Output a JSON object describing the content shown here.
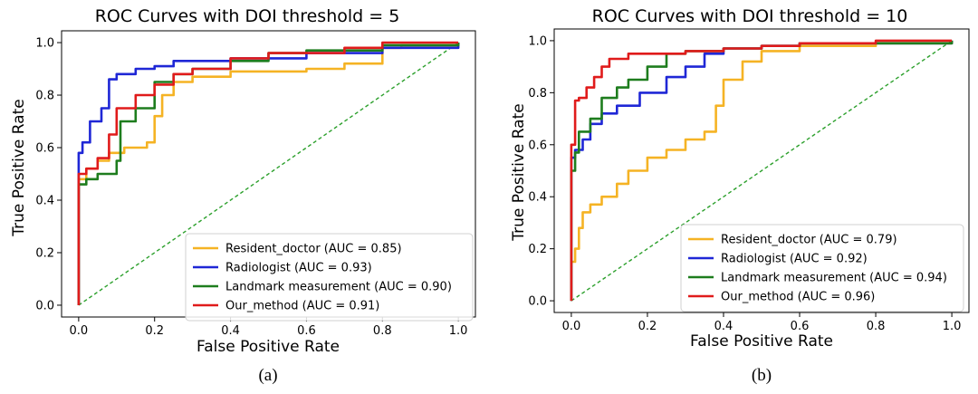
{
  "chart_data": [
    {
      "type": "line",
      "title": "ROC Curves with DOI threshold = 5",
      "xlabel": "False Positive Rate",
      "ylabel": "True Positive Rate",
      "xlim": [
        0,
        1
      ],
      "ylim": [
        0,
        1
      ],
      "xticks": [
        "0.0",
        "0.2",
        "0.4",
        "0.6",
        "0.8",
        "1.0"
      ],
      "yticks": [
        "0.0",
        "0.2",
        "0.4",
        "0.6",
        "0.8",
        "1.0"
      ],
      "legend_position": "lower-right",
      "caption": "(a)",
      "diagonal": {
        "x": [
          0,
          1
        ],
        "y": [
          0,
          1
        ],
        "color": "#2ca02c",
        "style": "dashed"
      },
      "series": [
        {
          "name": "Resident_doctor (AUC = 0.85)",
          "color": "#f5b324",
          "x": [
            0,
            0,
            0.02,
            0.05,
            0.08,
            0.12,
            0.18,
            0.2,
            0.22,
            0.25,
            0.3,
            0.4,
            0.5,
            0.6,
            0.7,
            0.8,
            0.8,
            0.85,
            1.0
          ],
          "y": [
            0,
            0.48,
            0.52,
            0.55,
            0.58,
            0.6,
            0.62,
            0.72,
            0.8,
            0.85,
            0.87,
            0.89,
            0.89,
            0.9,
            0.92,
            0.93,
            0.98,
            0.99,
            1.0
          ]
        },
        {
          "name": "Radiologist (AUC = 0.93)",
          "color": "#1f27d6",
          "x": [
            0,
            0,
            0.01,
            0.03,
            0.06,
            0.08,
            0.1,
            0.15,
            0.2,
            0.25,
            0.3,
            0.4,
            0.6,
            0.8,
            1.0
          ],
          "y": [
            0,
            0.58,
            0.62,
            0.7,
            0.75,
            0.86,
            0.88,
            0.9,
            0.91,
            0.93,
            0.93,
            0.94,
            0.96,
            0.98,
            1.0
          ]
        },
        {
          "name": "Landmark measurement (AUC = 0.90)",
          "color": "#1e7d1e",
          "x": [
            0,
            0,
            0.02,
            0.05,
            0.1,
            0.11,
            0.15,
            0.2,
            0.25,
            0.3,
            0.4,
            0.5,
            0.6,
            0.8,
            1.0
          ],
          "y": [
            0,
            0.46,
            0.48,
            0.5,
            0.55,
            0.7,
            0.75,
            0.85,
            0.88,
            0.9,
            0.93,
            0.96,
            0.97,
            0.99,
            1.0
          ]
        },
        {
          "name": "Our_method (AUC = 0.91)",
          "color": "#e01b1b",
          "x": [
            0,
            0,
            0.02,
            0.05,
            0.08,
            0.1,
            0.15,
            0.2,
            0.25,
            0.3,
            0.4,
            0.5,
            0.7,
            0.8,
            1.0
          ],
          "y": [
            0,
            0.5,
            0.52,
            0.56,
            0.65,
            0.75,
            0.8,
            0.84,
            0.88,
            0.9,
            0.94,
            0.96,
            0.98,
            1.0,
            1.0
          ]
        }
      ]
    },
    {
      "type": "line",
      "title": "ROC Curves with DOI threshold = 10",
      "xlabel": "False Positive Rate",
      "ylabel": "True Positive Rate",
      "xlim": [
        0,
        1
      ],
      "ylim": [
        0,
        1
      ],
      "xticks": [
        "0.0",
        "0.2",
        "0.4",
        "0.6",
        "0.8",
        "1.0"
      ],
      "yticks": [
        "0.0",
        "0.2",
        "0.4",
        "0.6",
        "0.8",
        "1.0"
      ],
      "legend_position": "lower-right",
      "caption": "(b)",
      "diagonal": {
        "x": [
          0,
          1
        ],
        "y": [
          0,
          1
        ],
        "color": "#2ca02c",
        "style": "dashed"
      },
      "series": [
        {
          "name": "Resident_doctor (AUC = 0.79)",
          "color": "#f5b324",
          "x": [
            0,
            0,
            0.01,
            0.02,
            0.03,
            0.05,
            0.08,
            0.12,
            0.15,
            0.2,
            0.25,
            0.3,
            0.35,
            0.38,
            0.4,
            0.45,
            0.5,
            0.6,
            0.8,
            1.0
          ],
          "y": [
            0,
            0.15,
            0.2,
            0.28,
            0.34,
            0.37,
            0.4,
            0.45,
            0.5,
            0.55,
            0.58,
            0.62,
            0.65,
            0.75,
            0.85,
            0.92,
            0.96,
            0.98,
            0.99,
            1.0
          ]
        },
        {
          "name": "Radiologist (AUC = 0.92)",
          "color": "#1f27d6",
          "x": [
            0,
            0,
            0.01,
            0.03,
            0.05,
            0.08,
            0.12,
            0.18,
            0.25,
            0.3,
            0.35,
            0.4,
            0.5,
            0.6,
            0.8,
            1.0
          ],
          "y": [
            0,
            0.55,
            0.58,
            0.62,
            0.68,
            0.72,
            0.75,
            0.8,
            0.86,
            0.9,
            0.95,
            0.97,
            0.98,
            0.99,
            0.99,
            1.0
          ]
        },
        {
          "name": "Landmark measurement (AUC = 0.94)",
          "color": "#1e7d1e",
          "x": [
            0,
            0,
            0.01,
            0.02,
            0.05,
            0.08,
            0.12,
            0.15,
            0.2,
            0.25,
            0.3,
            0.4,
            0.5,
            0.6,
            0.8,
            1.0
          ],
          "y": [
            0,
            0.5,
            0.57,
            0.65,
            0.7,
            0.78,
            0.82,
            0.85,
            0.9,
            0.95,
            0.96,
            0.97,
            0.98,
            0.99,
            0.99,
            1.0
          ]
        },
        {
          "name": "Our_method (AUC = 0.96)",
          "color": "#e01b1b",
          "x": [
            0,
            0,
            0.01,
            0.02,
            0.04,
            0.06,
            0.08,
            0.1,
            0.15,
            0.2,
            0.3,
            0.4,
            0.5,
            0.6,
            0.8,
            1.0
          ],
          "y": [
            0,
            0.6,
            0.77,
            0.78,
            0.82,
            0.86,
            0.9,
            0.93,
            0.95,
            0.95,
            0.96,
            0.97,
            0.98,
            0.99,
            1.0,
            1.0
          ]
        }
      ]
    }
  ]
}
